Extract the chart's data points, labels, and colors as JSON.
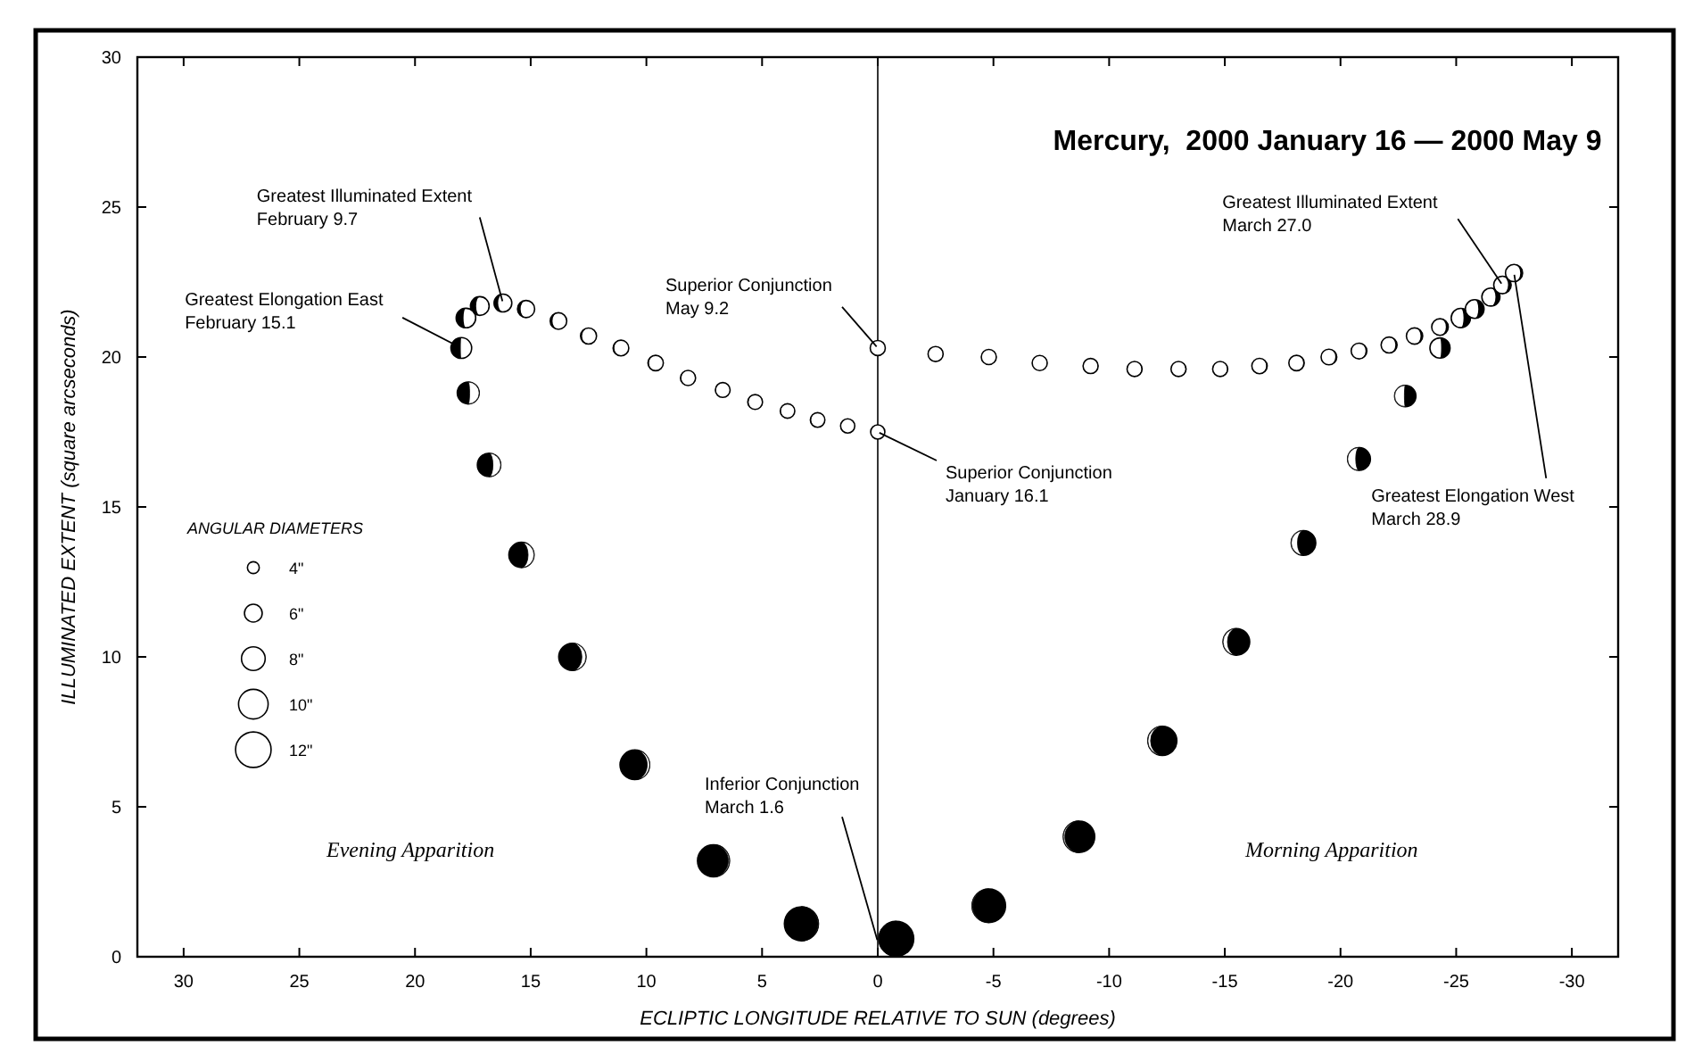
{
  "chart_data": {
    "type": "bubble",
    "title": "Mercury,  2000 January 16 — 2000 May 9",
    "xlabel": "ECLIPTIC LONGITUDE RELATIVE TO SUN  (degrees)",
    "ylabel": "ILLUMINATED EXTENT  (square arcseconds)",
    "legend_title": "ANGULAR DIAMETERS",
    "size_legend": [
      {
        "value": 12.57,
        "label": "4\""
      },
      {
        "value": 28.27,
        "label": "6\""
      },
      {
        "value": 50.27,
        "label": "8\""
      },
      {
        "value": 78.54,
        "label": "10\""
      },
      {
        "value": 113.1,
        "label": "12\""
      }
    ],
    "xlim": [
      32,
      -32
    ],
    "xticks": [
      30,
      25,
      20,
      15,
      10,
      5,
      0,
      -5,
      -10,
      -15,
      -20,
      -25,
      -30
    ],
    "ylim": [
      0,
      30
    ],
    "yticks": [
      0,
      5,
      10,
      15,
      20,
      25,
      30
    ],
    "grid": false,
    "marker": "circle",
    "ref_lines": [
      {
        "axis": "x",
        "value": 0,
        "label": null
      }
    ],
    "series": [
      {
        "colors": [
          "#ffffff",
          "#ffffff",
          "#ffffff",
          "#ffffff",
          "#ffffff",
          "#ffffff",
          "#ffffff",
          "#ffffff",
          "#ffffff",
          "#ffffff",
          "#ffffff",
          "#ffffff",
          "#ffffff",
          "#ffffff",
          "#ffffff",
          "#ffffff",
          "#000000",
          "#000000",
          "#000000",
          "#000000",
          "#000000",
          "#000000",
          "#000000",
          "#000000",
          "#000000",
          "#000000",
          "#000000",
          "#000000",
          "#000000",
          "#000000",
          "#000000",
          "#ffffff",
          "#ffffff",
          "#ffffff",
          "#ffffff",
          "#ffffff",
          "#ffffff",
          "#ffffff",
          "#ffffff",
          "#ffffff",
          "#ffffff",
          "#ffffff",
          "#ffffff",
          "#ffffff",
          "#ffffff",
          "#ffffff",
          "#ffffff",
          "#ffffff",
          "#ffffff",
          "#ffffff",
          "#ffffff",
          "#ffffff"
        ],
        "x": [
          0,
          1.3,
          2.6,
          3.9,
          5.3,
          6.7,
          8.2,
          9.6,
          11.1,
          12.5,
          13.8,
          15.2,
          16.2,
          17.2,
          17.8,
          18.0,
          17.7,
          16.8,
          15.4,
          13.2,
          10.5,
          7.1,
          3.3,
          -0.8,
          -4.8,
          -8.7,
          -12.3,
          -15.5,
          -18.4,
          -20.8,
          -22.8,
          -24.3,
          -25.2,
          -25.8,
          -26.5,
          -27.0,
          -27.5,
          -24.3,
          -23.2,
          -22.1,
          -20.8,
          -19.5,
          -18.1,
          -16.5,
          -14.8,
          -13.0,
          -11.1,
          -9.2,
          -7.0,
          -4.8,
          -2.5,
          0
        ],
        "values": [
          17.5,
          17.7,
          17.9,
          18.2,
          18.5,
          18.9,
          19.3,
          19.8,
          20.3,
          20.7,
          21.2,
          21.6,
          21.8,
          21.7,
          21.3,
          20.3,
          18.8,
          16.4,
          13.4,
          10.0,
          6.4,
          3.2,
          1.1,
          0.6,
          1.7,
          4.0,
          7.2,
          10.5,
          13.8,
          16.6,
          18.7,
          20.3,
          21.3,
          21.6,
          22.0,
          22.4,
          22.8,
          21.0,
          20.7,
          20.4,
          20.2,
          20.0,
          19.8,
          19.7,
          19.6,
          19.6,
          19.6,
          19.7,
          19.8,
          20.0,
          20.1,
          20.3
        ],
        "sizes": [
          18.1,
          18.1,
          18.9,
          18.9,
          19.6,
          19.6,
          20.4,
          21.2,
          22.1,
          22.9,
          24.6,
          26.4,
          28.3,
          31.2,
          34.2,
          38.5,
          43.0,
          49.0,
          56.7,
          66.5,
          78.5,
          91.6,
          103.9,
          109.4,
          100.3,
          88.2,
          75.4,
          63.6,
          54.1,
          46.6,
          40.7,
          36.3,
          33.2,
          31.2,
          29.2,
          27.3,
          26.4,
          24.6,
          23.8,
          22.9,
          22.1,
          22.1,
          21.2,
          21.2,
          20.4,
          20.4,
          20.4,
          20.4,
          20.4,
          20.4,
          20.4,
          20.4
        ]
      }
    ],
    "annotations": [
      {
        "text": "Greatest Illuminated Extent\nFebruary 9.7",
        "x": 16.2,
        "y": 21.8
      },
      {
        "text": "Greatest Elongation East\nFebruary 15.1",
        "x": 18.0,
        "y": 20.3
      },
      {
        "text": "Superior Conjunction\nMay 9.2",
        "x": 0,
        "y": 20.3
      },
      {
        "text": "Superior Conjunction\nJanuary 16.1",
        "x": 0,
        "y": 17.5
      },
      {
        "text": "Greatest Illuminated Extent\nMarch 27.0",
        "x": -27.0,
        "y": 22.4
      },
      {
        "text": "Greatest Elongation West\nMarch 28.9",
        "x": -27.5,
        "y": 22.8
      },
      {
        "text": "Inferior Conjunction\nMarch 1.6",
        "x": 0,
        "y": 0.5
      },
      "Evening Apparition",
      "Morning Apparition"
    ]
  }
}
